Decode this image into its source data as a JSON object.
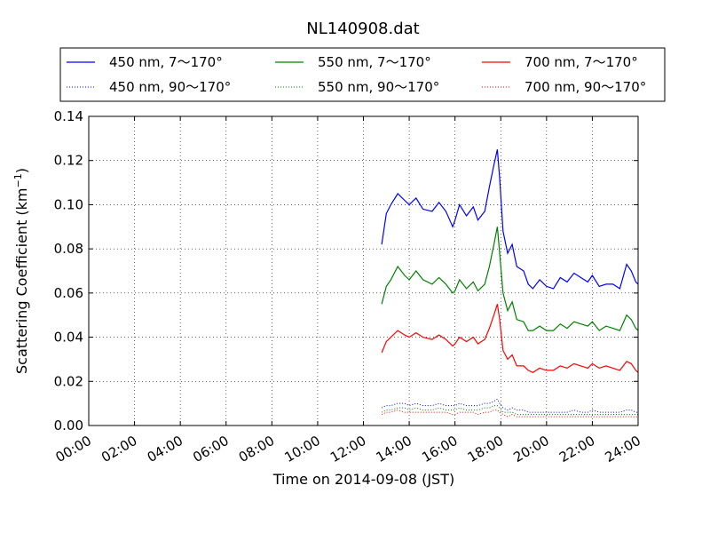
{
  "chart_data": {
    "type": "line",
    "title": "NL140908.dat",
    "xlabel": "Time on 2014-09-08 (JST)",
    "ylabel": "Scattering Coefficient (km",
    "ylabel_sup": "−1",
    "ylabel_close": ")",
    "xlim": [
      0,
      24
    ],
    "ylim": [
      0,
      0.14
    ],
    "grid": true,
    "legend_position": "top",
    "x_ticks": [
      {
        "value": 0,
        "label": "00:00"
      },
      {
        "value": 2,
        "label": "02:00"
      },
      {
        "value": 4,
        "label": "04:00"
      },
      {
        "value": 6,
        "label": "06:00"
      },
      {
        "value": 8,
        "label": "08:00"
      },
      {
        "value": 10,
        "label": "10:00"
      },
      {
        "value": 12,
        "label": "12:00"
      },
      {
        "value": 14,
        "label": "14:00"
      },
      {
        "value": 16,
        "label": "16:00"
      },
      {
        "value": 18,
        "label": "18:00"
      },
      {
        "value": 20,
        "label": "20:00"
      },
      {
        "value": 22,
        "label": "22:00"
      },
      {
        "value": 24,
        "label": "24:00"
      }
    ],
    "y_ticks": [
      {
        "value": 0,
        "label": "0.00"
      },
      {
        "value": 0.02,
        "label": "0.02"
      },
      {
        "value": 0.04,
        "label": "0.04"
      },
      {
        "value": 0.06,
        "label": "0.06"
      },
      {
        "value": 0.08,
        "label": "0.08"
      },
      {
        "value": 0.1,
        "label": "0.10"
      },
      {
        "value": 0.12,
        "label": "0.12"
      },
      {
        "value": 0.14,
        "label": "0.14"
      }
    ],
    "x": [
      12.8,
      13.0,
      13.2,
      13.5,
      13.8,
      14.0,
      14.3,
      14.6,
      15.0,
      15.3,
      15.6,
      15.9,
      16.0,
      16.2,
      16.5,
      16.8,
      17.0,
      17.3,
      17.5,
      17.7,
      17.85,
      17.95,
      18.1,
      18.3,
      18.5,
      18.7,
      19.0,
      19.2,
      19.4,
      19.7,
      20.0,
      20.3,
      20.6,
      20.9,
      21.2,
      21.5,
      21.8,
      22.0,
      22.3,
      22.6,
      22.9,
      23.2,
      23.5,
      23.7,
      23.9,
      24.0
    ],
    "series": [
      {
        "name": "450 nm, 7～170°",
        "color": "#0000ff",
        "style": "solid",
        "values": [
          0.082,
          0.096,
          0.1,
          0.105,
          0.102,
          0.1,
          0.103,
          0.098,
          0.097,
          0.101,
          0.097,
          0.09,
          0.093,
          0.1,
          0.095,
          0.099,
          0.093,
          0.097,
          0.108,
          0.118,
          0.125,
          0.112,
          0.088,
          0.078,
          0.082,
          0.072,
          0.07,
          0.064,
          0.062,
          0.066,
          0.063,
          0.062,
          0.067,
          0.065,
          0.069,
          0.067,
          0.065,
          0.068,
          0.063,
          0.064,
          0.064,
          0.062,
          0.073,
          0.07,
          0.065,
          0.064
        ]
      },
      {
        "name": "550 nm, 7～170°",
        "color": "#008000",
        "style": "solid",
        "values": [
          0.055,
          0.063,
          0.066,
          0.072,
          0.068,
          0.066,
          0.07,
          0.066,
          0.064,
          0.067,
          0.064,
          0.06,
          0.061,
          0.066,
          0.062,
          0.065,
          0.061,
          0.064,
          0.072,
          0.082,
          0.09,
          0.078,
          0.06,
          0.052,
          0.056,
          0.048,
          0.047,
          0.043,
          0.043,
          0.045,
          0.043,
          0.043,
          0.046,
          0.044,
          0.047,
          0.046,
          0.045,
          0.047,
          0.043,
          0.045,
          0.044,
          0.043,
          0.05,
          0.048,
          0.044,
          0.043
        ]
      },
      {
        "name": "700 nm, 7～170°",
        "color": "#ff0000",
        "style": "solid",
        "values": [
          0.033,
          0.038,
          0.04,
          0.043,
          0.041,
          0.04,
          0.042,
          0.04,
          0.039,
          0.041,
          0.039,
          0.036,
          0.037,
          0.04,
          0.038,
          0.04,
          0.037,
          0.039,
          0.044,
          0.05,
          0.055,
          0.048,
          0.034,
          0.03,
          0.032,
          0.027,
          0.027,
          0.025,
          0.024,
          0.026,
          0.025,
          0.025,
          0.027,
          0.026,
          0.028,
          0.027,
          0.026,
          0.028,
          0.026,
          0.027,
          0.026,
          0.025,
          0.029,
          0.028,
          0.025,
          0.024
        ]
      },
      {
        "name": "450 nm, 90～170°",
        "color": "#0000ff",
        "style": "dotted",
        "values": [
          0.008,
          0.009,
          0.009,
          0.01,
          0.01,
          0.009,
          0.01,
          0.009,
          0.009,
          0.01,
          0.009,
          0.009,
          0.009,
          0.01,
          0.009,
          0.009,
          0.009,
          0.01,
          0.01,
          0.011,
          0.012,
          0.01,
          0.008,
          0.007,
          0.008,
          0.007,
          0.007,
          0.006,
          0.006,
          0.006,
          0.006,
          0.006,
          0.006,
          0.006,
          0.007,
          0.006,
          0.006,
          0.007,
          0.006,
          0.006,
          0.006,
          0.006,
          0.007,
          0.007,
          0.006,
          0.006
        ]
      },
      {
        "name": "550 nm, 90～170°",
        "color": "#008000",
        "style": "dotted",
        "values": [
          0.006,
          0.007,
          0.007,
          0.008,
          0.008,
          0.007,
          0.008,
          0.007,
          0.007,
          0.008,
          0.007,
          0.007,
          0.007,
          0.008,
          0.007,
          0.007,
          0.007,
          0.008,
          0.008,
          0.009,
          0.009,
          0.008,
          0.006,
          0.006,
          0.006,
          0.005,
          0.005,
          0.005,
          0.005,
          0.005,
          0.005,
          0.005,
          0.005,
          0.005,
          0.005,
          0.005,
          0.005,
          0.005,
          0.005,
          0.005,
          0.005,
          0.005,
          0.005,
          0.005,
          0.005,
          0.005
        ]
      },
      {
        "name": "700 nm, 90～170°",
        "color": "#ff0000",
        "style": "dotted",
        "values": [
          0.005,
          0.006,
          0.006,
          0.007,
          0.006,
          0.006,
          0.006,
          0.006,
          0.006,
          0.006,
          0.006,
          0.005,
          0.005,
          0.006,
          0.006,
          0.006,
          0.005,
          0.006,
          0.006,
          0.007,
          0.007,
          0.006,
          0.005,
          0.004,
          0.005,
          0.004,
          0.004,
          0.004,
          0.004,
          0.004,
          0.004,
          0.004,
          0.004,
          0.004,
          0.004,
          0.004,
          0.004,
          0.004,
          0.004,
          0.004,
          0.004,
          0.004,
          0.004,
          0.004,
          0.004,
          0.004
        ]
      }
    ],
    "legend_order": [
      0,
      1,
      2,
      3,
      4,
      5
    ]
  }
}
